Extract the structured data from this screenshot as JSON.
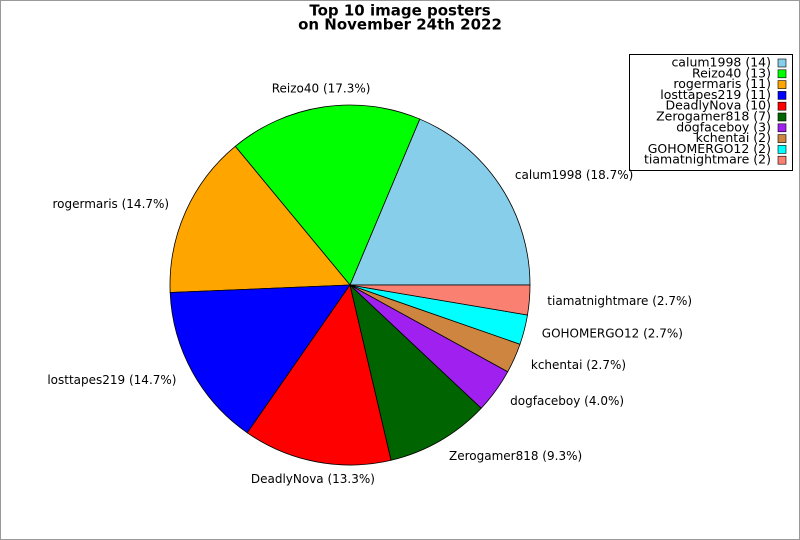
{
  "chart_data": {
    "type": "pie",
    "title": [
      "Top 10 image posters",
      "on November 24th 2022"
    ],
    "categories": [
      "calum1998 (14)",
      "Reizo40 (13)",
      "rogermaris (11)",
      "losttapes219 (11)",
      "DeadlyNova (10)",
      "Zerogamer818 (7)",
      "dogfaceboy (3)",
      "kchentai (2)",
      "GOHOMERGO12 (2)",
      "tiamatnightmare (2)"
    ],
    "values": [
      14,
      13,
      11,
      11,
      10,
      7,
      3,
      2,
      2,
      2
    ],
    "slice_labels": [
      "calum1998 (18.7%)",
      "Reizo40 (17.3%)",
      "rogermaris (14.7%)",
      "losttapes219 (14.7%)",
      "DeadlyNova (13.3%)",
      "Zerogamer818 (9.3%)",
      "dogfaceboy (4.0%)",
      "kchentai (2.7%)",
      "GOHOMERGO12 (2.7%)",
      "tiamatnightmare (2.7%)"
    ],
    "colors": [
      "#87ceeb",
      "#00ff00",
      "#ffa500",
      "#0000ff",
      "#ff0000",
      "#006400",
      "#a020f0",
      "#cd853f",
      "#00ffff",
      "#fa8072"
    ],
    "legend": "upper right"
  }
}
